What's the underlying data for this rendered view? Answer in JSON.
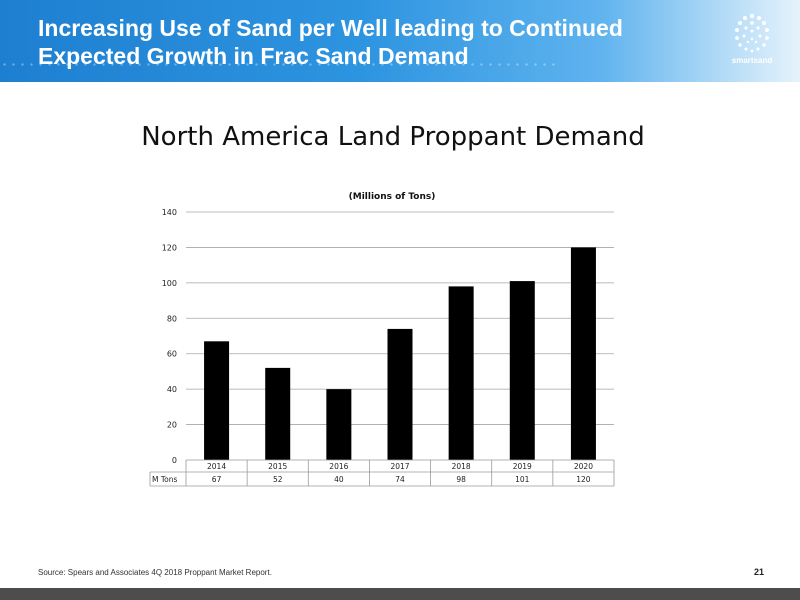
{
  "header": {
    "title_line1": "Increasing Use of Sand per Well leading to Continued",
    "title_line2": "Expected Growth in Frac Sand Demand",
    "logo_text": "smartsand",
    "logo_icon": "dotted-sphere-icon",
    "gradient_start": "#1e7fd0",
    "gradient_end": "#e6f3fc"
  },
  "chart_data": {
    "type": "bar",
    "title": "North America Land Proppant Demand",
    "subtitle": "(Millions of Tons)",
    "categories": [
      "2014",
      "2015",
      "2016",
      "2017",
      "2018",
      "2019",
      "2020"
    ],
    "series": [
      {
        "name": "M Tons",
        "values": [
          67,
          52,
          40,
          74,
          98,
          101,
          120
        ],
        "color": "#000000"
      }
    ],
    "ylim": [
      0,
      140
    ],
    "yticks": [
      0,
      20,
      40,
      60,
      80,
      100,
      120,
      140
    ],
    "grid": true,
    "data_table": true
  },
  "footer": {
    "source": "Source: Spears and Associates 4Q 2018 Proppant Market Report.",
    "page_number": "21"
  }
}
